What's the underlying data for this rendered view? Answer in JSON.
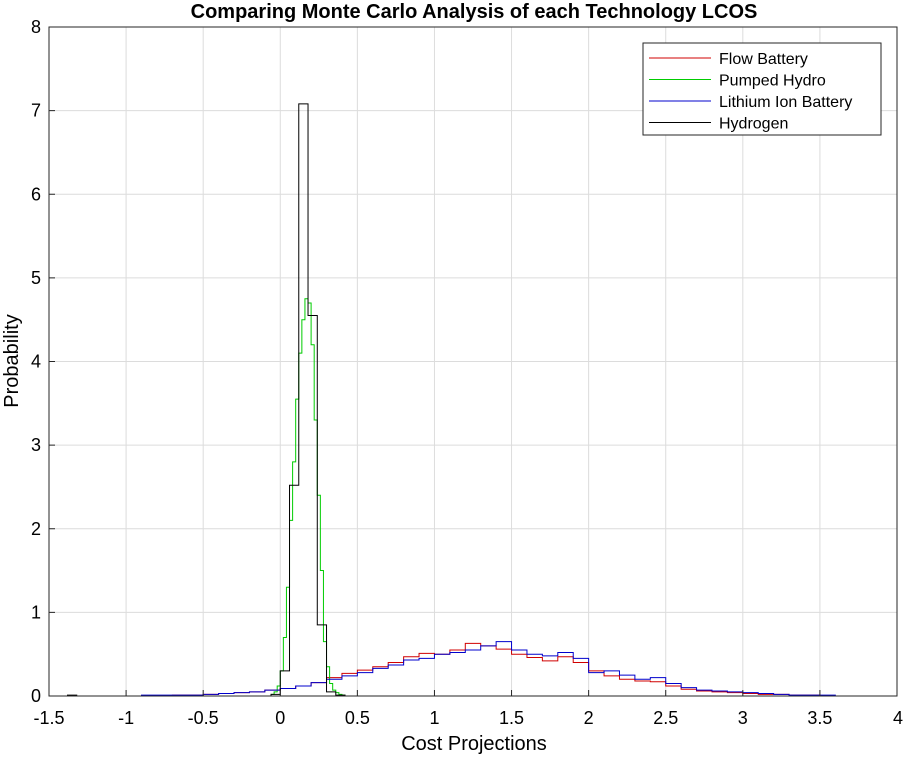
{
  "chart_data": {
    "type": "histogram",
    "title": "Comparing Monte Carlo Analysis of each Technology LCOS",
    "xlabel": "Cost Projections",
    "ylabel": "Probability",
    "xlim": [
      -1.5,
      4
    ],
    "ylim": [
      0,
      8
    ],
    "xticks": [
      -1.5,
      -1,
      -0.5,
      0,
      0.5,
      1,
      1.5,
      2,
      2.5,
      3,
      3.5,
      4
    ],
    "yticks": [
      0,
      1,
      2,
      3,
      4,
      5,
      6,
      7,
      8
    ],
    "grid": true,
    "legend_position": "top-right",
    "series": [
      {
        "name": "Flow Battery",
        "color": "#d00000",
        "bin_width": 0.1,
        "bins": [
          [
            -0.8,
            0.0
          ],
          [
            -0.7,
            0.01
          ],
          [
            -0.6,
            0.01
          ],
          [
            -0.5,
            0.02
          ],
          [
            -0.4,
            0.03
          ],
          [
            -0.3,
            0.04
          ],
          [
            -0.2,
            0.05
          ],
          [
            -0.1,
            0.07
          ],
          [
            0.0,
            0.09
          ],
          [
            0.1,
            0.12
          ],
          [
            0.2,
            0.16
          ],
          [
            0.3,
            0.22
          ],
          [
            0.4,
            0.27
          ],
          [
            0.5,
            0.31
          ],
          [
            0.6,
            0.35
          ],
          [
            0.7,
            0.4
          ],
          [
            0.8,
            0.47
          ],
          [
            0.9,
            0.51
          ],
          [
            1.0,
            0.5
          ],
          [
            1.1,
            0.55
          ],
          [
            1.2,
            0.63
          ],
          [
            1.3,
            0.6
          ],
          [
            1.4,
            0.56
          ],
          [
            1.5,
            0.5
          ],
          [
            1.6,
            0.46
          ],
          [
            1.7,
            0.42
          ],
          [
            1.8,
            0.47
          ],
          [
            1.9,
            0.4
          ],
          [
            2.0,
            0.3
          ],
          [
            2.1,
            0.24
          ],
          [
            2.2,
            0.2
          ],
          [
            2.3,
            0.18
          ],
          [
            2.4,
            0.17
          ],
          [
            2.5,
            0.12
          ],
          [
            2.6,
            0.08
          ],
          [
            2.7,
            0.06
          ],
          [
            2.8,
            0.05
          ],
          [
            2.9,
            0.04
          ],
          [
            3.0,
            0.03
          ],
          [
            3.1,
            0.02
          ],
          [
            3.2,
            0.02
          ],
          [
            3.3,
            0.01
          ],
          [
            3.4,
            0.01
          ],
          [
            3.5,
            0.0
          ],
          [
            3.6,
            0.0
          ],
          [
            3.7,
            0.0
          ],
          [
            3.8,
            0.0
          ],
          [
            3.9,
            0.0
          ]
        ]
      },
      {
        "name": "Pumped Hydro",
        "color": "#00cc00",
        "bin_width": 0.02,
        "bins": [
          [
            -0.06,
            0.02
          ],
          [
            -0.04,
            0.05
          ],
          [
            -0.02,
            0.12
          ],
          [
            0.0,
            0.3
          ],
          [
            0.02,
            0.7
          ],
          [
            0.04,
            1.3
          ],
          [
            0.06,
            2.1
          ],
          [
            0.08,
            2.8
          ],
          [
            0.1,
            3.55
          ],
          [
            0.12,
            4.1
          ],
          [
            0.14,
            4.5
          ],
          [
            0.16,
            4.75
          ],
          [
            0.18,
            4.7
          ],
          [
            0.2,
            4.2
          ],
          [
            0.22,
            3.3
          ],
          [
            0.24,
            2.4
          ],
          [
            0.26,
            1.5
          ],
          [
            0.28,
            0.65
          ],
          [
            0.3,
            0.35
          ],
          [
            0.32,
            0.15
          ],
          [
            0.34,
            0.07
          ],
          [
            0.36,
            0.04
          ],
          [
            0.38,
            0.02
          ],
          [
            0.4,
            0.01
          ]
        ]
      },
      {
        "name": "Lithium Ion Battery",
        "color": "#0000cc",
        "bin_width": 0.1,
        "bins": [
          [
            -0.9,
            0.01
          ],
          [
            -0.8,
            0.01
          ],
          [
            -0.7,
            0.01
          ],
          [
            -0.6,
            0.01
          ],
          [
            -0.5,
            0.02
          ],
          [
            -0.4,
            0.03
          ],
          [
            -0.3,
            0.04
          ],
          [
            -0.2,
            0.05
          ],
          [
            -0.1,
            0.07
          ],
          [
            0.0,
            0.09
          ],
          [
            0.1,
            0.12
          ],
          [
            0.2,
            0.16
          ],
          [
            0.3,
            0.2
          ],
          [
            0.4,
            0.24
          ],
          [
            0.5,
            0.28
          ],
          [
            0.6,
            0.33
          ],
          [
            0.7,
            0.37
          ],
          [
            0.8,
            0.43
          ],
          [
            0.9,
            0.45
          ],
          [
            1.0,
            0.5
          ],
          [
            1.1,
            0.52
          ],
          [
            1.2,
            0.55
          ],
          [
            1.3,
            0.6
          ],
          [
            1.4,
            0.65
          ],
          [
            1.5,
            0.55
          ],
          [
            1.6,
            0.5
          ],
          [
            1.7,
            0.48
          ],
          [
            1.8,
            0.52
          ],
          [
            1.9,
            0.45
          ],
          [
            2.0,
            0.28
          ],
          [
            2.1,
            0.3
          ],
          [
            2.2,
            0.25
          ],
          [
            2.3,
            0.2
          ],
          [
            2.4,
            0.22
          ],
          [
            2.5,
            0.15
          ],
          [
            2.6,
            0.1
          ],
          [
            2.7,
            0.07
          ],
          [
            2.8,
            0.06
          ],
          [
            2.9,
            0.05
          ],
          [
            3.0,
            0.04
          ],
          [
            3.1,
            0.03
          ],
          [
            3.2,
            0.02
          ],
          [
            3.3,
            0.01
          ],
          [
            3.4,
            0.01
          ],
          [
            3.5,
            0.01
          ],
          [
            3.6,
            0.0
          ]
        ]
      },
      {
        "name": "Hydrogen",
        "color": "#000000",
        "bin_width": 0.06,
        "bins": [
          [
            -1.38,
            0.01
          ],
          [
            -1.32,
            0.0
          ],
          [
            -0.06,
            0.02
          ],
          [
            0.0,
            0.3
          ],
          [
            0.06,
            2.52
          ],
          [
            0.12,
            7.08
          ],
          [
            0.18,
            4.55
          ],
          [
            0.24,
            0.85
          ],
          [
            0.3,
            0.05
          ],
          [
            0.36,
            0.01
          ]
        ]
      }
    ]
  }
}
